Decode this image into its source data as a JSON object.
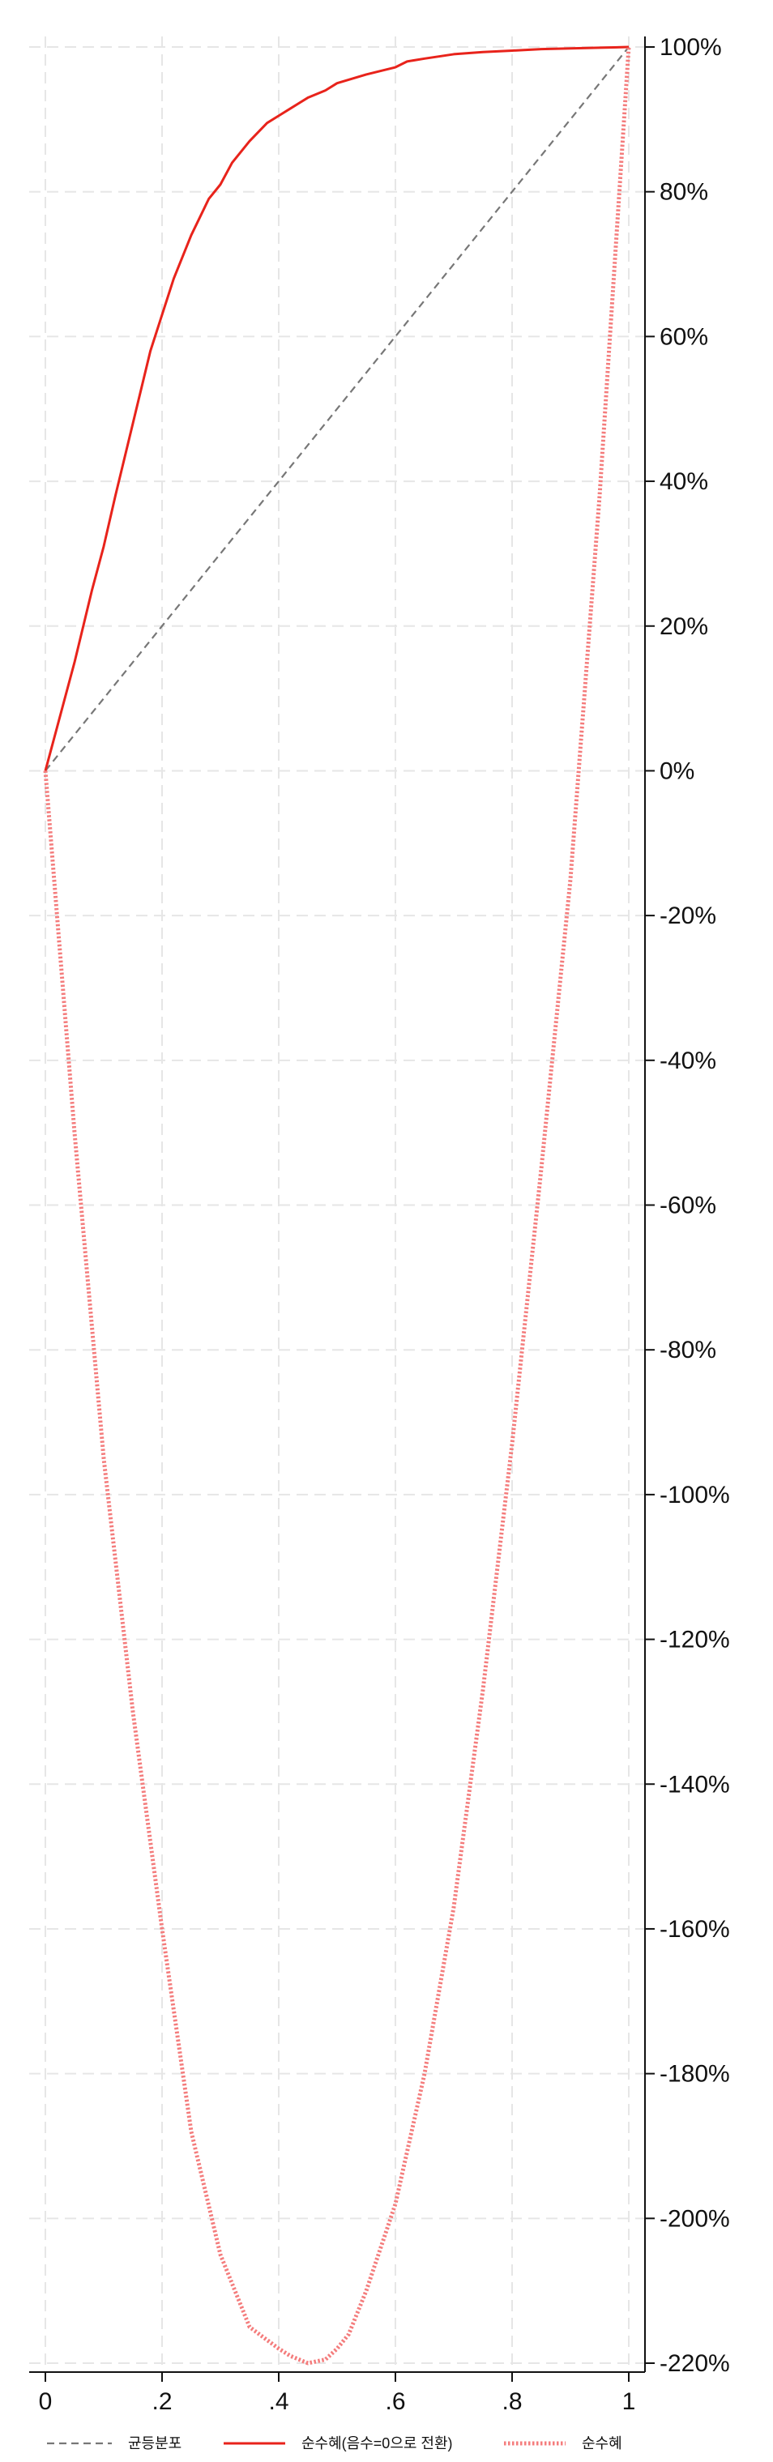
{
  "chart_data": {
    "type": "line",
    "title": "",
    "xlabel": "",
    "ylabel": "",
    "xlim": [
      0,
      1
    ],
    "ylim": [
      -2.2,
      1.0
    ],
    "grid": true,
    "y_axis_side": "right",
    "legend_position": "bottom",
    "x_ticks": [
      {
        "value": 0,
        "label": "0"
      },
      {
        "value": 0.2,
        "label": ".2"
      },
      {
        "value": 0.4,
        "label": ".4"
      },
      {
        "value": 0.6,
        "label": ".6"
      },
      {
        "value": 0.8,
        "label": ".8"
      },
      {
        "value": 1,
        "label": "1"
      }
    ],
    "y_ticks": [
      {
        "value": 1.0,
        "label": "100%"
      },
      {
        "value": 0.8,
        "label": "80%"
      },
      {
        "value": 0.6,
        "label": "60%"
      },
      {
        "value": 0.4,
        "label": "40%"
      },
      {
        "value": 0.2,
        "label": "20%"
      },
      {
        "value": 0.0,
        "label": "0%"
      },
      {
        "value": -0.2,
        "label": "-20%"
      },
      {
        "value": -0.4,
        "label": "-40%"
      },
      {
        "value": -0.6,
        "label": "-60%"
      },
      {
        "value": -0.8,
        "label": "-80%"
      },
      {
        "value": -1.0,
        "label": "-100%"
      },
      {
        "value": -1.2,
        "label": "-120%"
      },
      {
        "value": -1.4,
        "label": "-140%"
      },
      {
        "value": -1.6,
        "label": "-160%"
      },
      {
        "value": -1.8,
        "label": "-180%"
      },
      {
        "value": -2.0,
        "label": "-200%"
      },
      {
        "value": -2.2,
        "label": "-220%"
      }
    ],
    "series": [
      {
        "name": "균등분포",
        "style": "dashed",
        "color": "#777777",
        "x": [
          0,
          1
        ],
        "y": [
          0,
          1
        ]
      },
      {
        "name": "순수혜(음수=0으로 전환)",
        "style": "solid",
        "color": "#e8231b",
        "x": [
          0,
          0.02,
          0.05,
          0.08,
          0.1,
          0.12,
          0.15,
          0.18,
          0.2,
          0.22,
          0.25,
          0.28,
          0.3,
          0.32,
          0.35,
          0.38,
          0.4,
          0.42,
          0.45,
          0.48,
          0.5,
          0.55,
          0.6,
          0.62,
          0.65,
          0.7,
          0.75,
          0.8,
          0.85,
          0.9,
          0.95,
          1.0
        ],
        "y": [
          0,
          0.06,
          0.15,
          0.25,
          0.31,
          0.38,
          0.48,
          0.58,
          0.63,
          0.68,
          0.74,
          0.79,
          0.81,
          0.84,
          0.87,
          0.895,
          0.905,
          0.915,
          0.93,
          0.94,
          0.95,
          0.962,
          0.972,
          0.98,
          0.984,
          0.99,
          0.993,
          0.995,
          0.997,
          0.998,
          0.999,
          1.0
        ]
      },
      {
        "name": "순수혜",
        "style": "dotted",
        "color": "#f47c7c",
        "x": [
          0,
          0.05,
          0.1,
          0.15,
          0.2,
          0.25,
          0.3,
          0.35,
          0.4,
          0.42,
          0.45,
          0.48,
          0.5,
          0.52,
          0.55,
          0.6,
          0.65,
          0.7,
          0.75,
          0.8,
          0.85,
          0.9,
          0.95,
          1.0
        ],
        "y": [
          0,
          -0.5,
          -0.95,
          -1.3,
          -1.6,
          -1.88,
          -2.05,
          -2.15,
          -2.18,
          -2.19,
          -2.2,
          -2.195,
          -2.18,
          -2.16,
          -2.1,
          -1.98,
          -1.8,
          -1.57,
          -1.27,
          -0.93,
          -0.55,
          -0.15,
          0.38,
          1.0
        ]
      }
    ]
  }
}
